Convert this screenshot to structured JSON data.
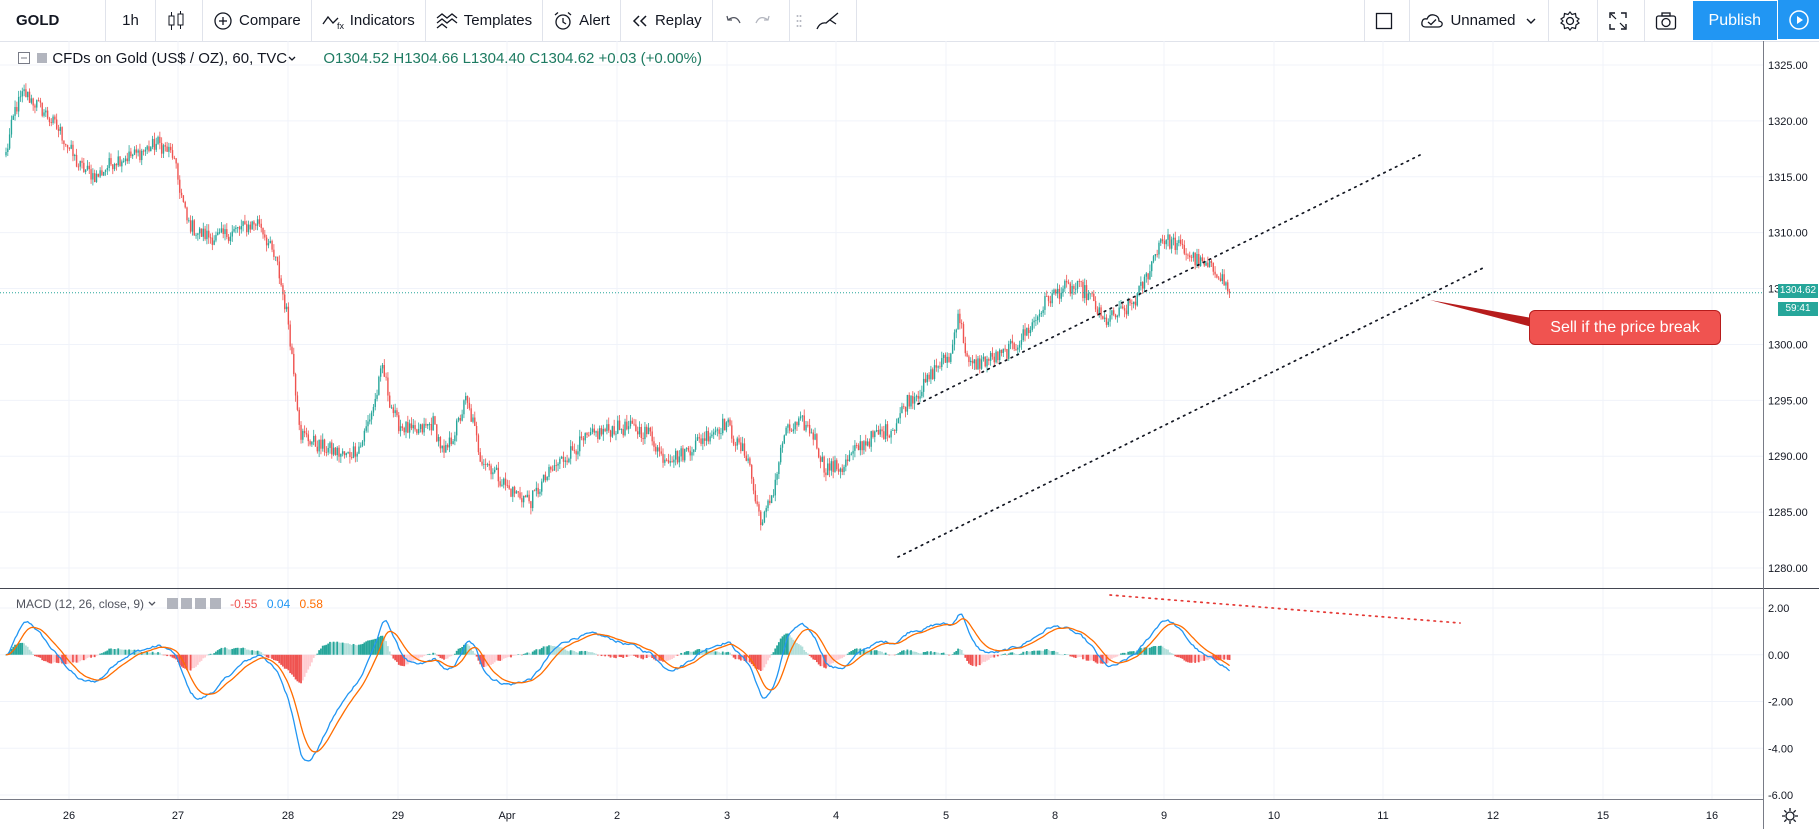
{
  "toolbar": {
    "symbol": "GOLD",
    "interval": "1h",
    "compare": "Compare",
    "indicators": "Indicators",
    "templates": "Templates",
    "alert": "Alert",
    "replay": "Replay",
    "layout_name": "Unnamed",
    "publish": "Publish"
  },
  "legend": {
    "title": "CFDs on Gold (US$ / OZ), 60, TVC",
    "ohlc": "O1304.52 H1304.66 L1304.40 C1304.62 +0.03 (+0.00%)"
  },
  "macd_legend": {
    "label": "MACD (12, 26, close, 9)",
    "hist": "-0.55",
    "macd": "0.04",
    "signal": "0.58"
  },
  "annotation": {
    "text": "Sell if the price break"
  },
  "price_tag": {
    "price": "1304.62",
    "countdown": "59:41"
  },
  "colors": {
    "up": "#26a69a",
    "down": "#ef5350",
    "macd_line": "#2196f3",
    "signal_line": "#ff6d00",
    "hist_up_strong": "#26a69a",
    "hist_up_weak": "#b2dfdb",
    "hist_down_strong": "#ef5350",
    "hist_down_weak": "#ffcdd2"
  },
  "chart_data": [
    {
      "type": "candlestick",
      "title": "CFDs on Gold (US$ / OZ), 60, TVC",
      "x_tick_labels": [
        "26",
        "27",
        "28",
        "29",
        "Apr",
        "2",
        "3",
        "4",
        "5",
        "8",
        "9",
        "10",
        "11",
        "12",
        "15",
        "16"
      ],
      "y_tick_labels": [
        "1325.00",
        "1320.00",
        "1315.00",
        "1310.00",
        "1305.00",
        "1300.00",
        "1295.00",
        "1290.00",
        "1285.00",
        "1280.00"
      ],
      "ylim": [
        1279,
        1326
      ],
      "last_price": 1304.62,
      "path_key_points": [
        [
          0,
          1317
        ],
        [
          5,
          1321
        ],
        [
          10,
          1322.5
        ],
        [
          20,
          1321
        ],
        [
          30,
          1319
        ],
        [
          40,
          1316
        ],
        [
          50,
          1315
        ],
        [
          60,
          1316.5
        ],
        [
          72,
          1317
        ],
        [
          84,
          1318
        ],
        [
          92,
          1317
        ],
        [
          96,
          1314
        ],
        [
          100,
          1311
        ],
        [
          106,
          1310
        ],
        [
          116,
          1309.5
        ],
        [
          124,
          1310
        ],
        [
          132,
          1310.5
        ],
        [
          140,
          1311
        ],
        [
          150,
          1307
        ],
        [
          156,
          1302
        ],
        [
          160,
          1296
        ],
        [
          163,
          1292
        ],
        [
          172,
          1291
        ],
        [
          180,
          1290.5
        ],
        [
          188,
          1290
        ],
        [
          196,
          1291
        ],
        [
          204,
          1295
        ],
        [
          208,
          1298
        ],
        [
          212,
          1295
        ],
        [
          216,
          1293
        ],
        [
          226,
          1292
        ],
        [
          236,
          1293
        ],
        [
          242,
          1290
        ],
        [
          250,
          1293
        ],
        [
          254,
          1295
        ],
        [
          258,
          1293
        ],
        [
          262,
          1290
        ],
        [
          268,
          1289
        ],
        [
          278,
          1287
        ],
        [
          290,
          1286
        ],
        [
          298,
          1288
        ],
        [
          306,
          1289.5
        ],
        [
          316,
          1291
        ],
        [
          326,
          1292
        ],
        [
          336,
          1292.5
        ],
        [
          346,
          1292.5
        ],
        [
          356,
          1292
        ],
        [
          362,
          1290
        ],
        [
          372,
          1290
        ],
        [
          380,
          1291
        ],
        [
          388,
          1292
        ],
        [
          398,
          1293
        ],
        [
          404,
          1291
        ],
        [
          410,
          1290
        ],
        [
          414,
          1286
        ],
        [
          418,
          1284
        ],
        [
          424,
          1287
        ],
        [
          430,
          1292
        ],
        [
          440,
          1293
        ],
        [
          446,
          1292
        ],
        [
          452,
          1289
        ],
        [
          462,
          1289
        ],
        [
          472,
          1291
        ],
        [
          482,
          1292
        ],
        [
          490,
          1292.5
        ],
        [
          498,
          1295
        ],
        [
          506,
          1296
        ],
        [
          514,
          1298
        ],
        [
          522,
          1299
        ],
        [
          526,
          1303
        ],
        [
          532,
          1298
        ],
        [
          540,
          1298.5
        ],
        [
          550,
          1299
        ],
        [
          558,
          1300
        ],
        [
          568,
          1302
        ],
        [
          575,
          1304
        ],
        [
          584,
          1305
        ],
        [
          594,
          1305
        ],
        [
          600,
          1304
        ],
        [
          606,
          1302
        ],
        [
          612,
          1302.5
        ],
        [
          618,
          1303
        ],
        [
          624,
          1304
        ],
        [
          630,
          1306
        ],
        [
          638,
          1309.5
        ],
        [
          646,
          1309
        ],
        [
          654,
          1308
        ],
        [
          662,
          1307
        ],
        [
          670,
          1306.5
        ],
        [
          676,
          1304.62
        ]
      ]
    },
    {
      "type": "macd",
      "title": "MACD (12, 26, close, 9)",
      "y_tick_labels": [
        "2.00",
        "0.00",
        "-2.00",
        "-4.00",
        "-6.00"
      ],
      "ylim": [
        -6.2,
        2.8
      ],
      "last_values": {
        "histogram": -0.55,
        "macd": 0.04,
        "signal": 0.58
      }
    }
  ]
}
